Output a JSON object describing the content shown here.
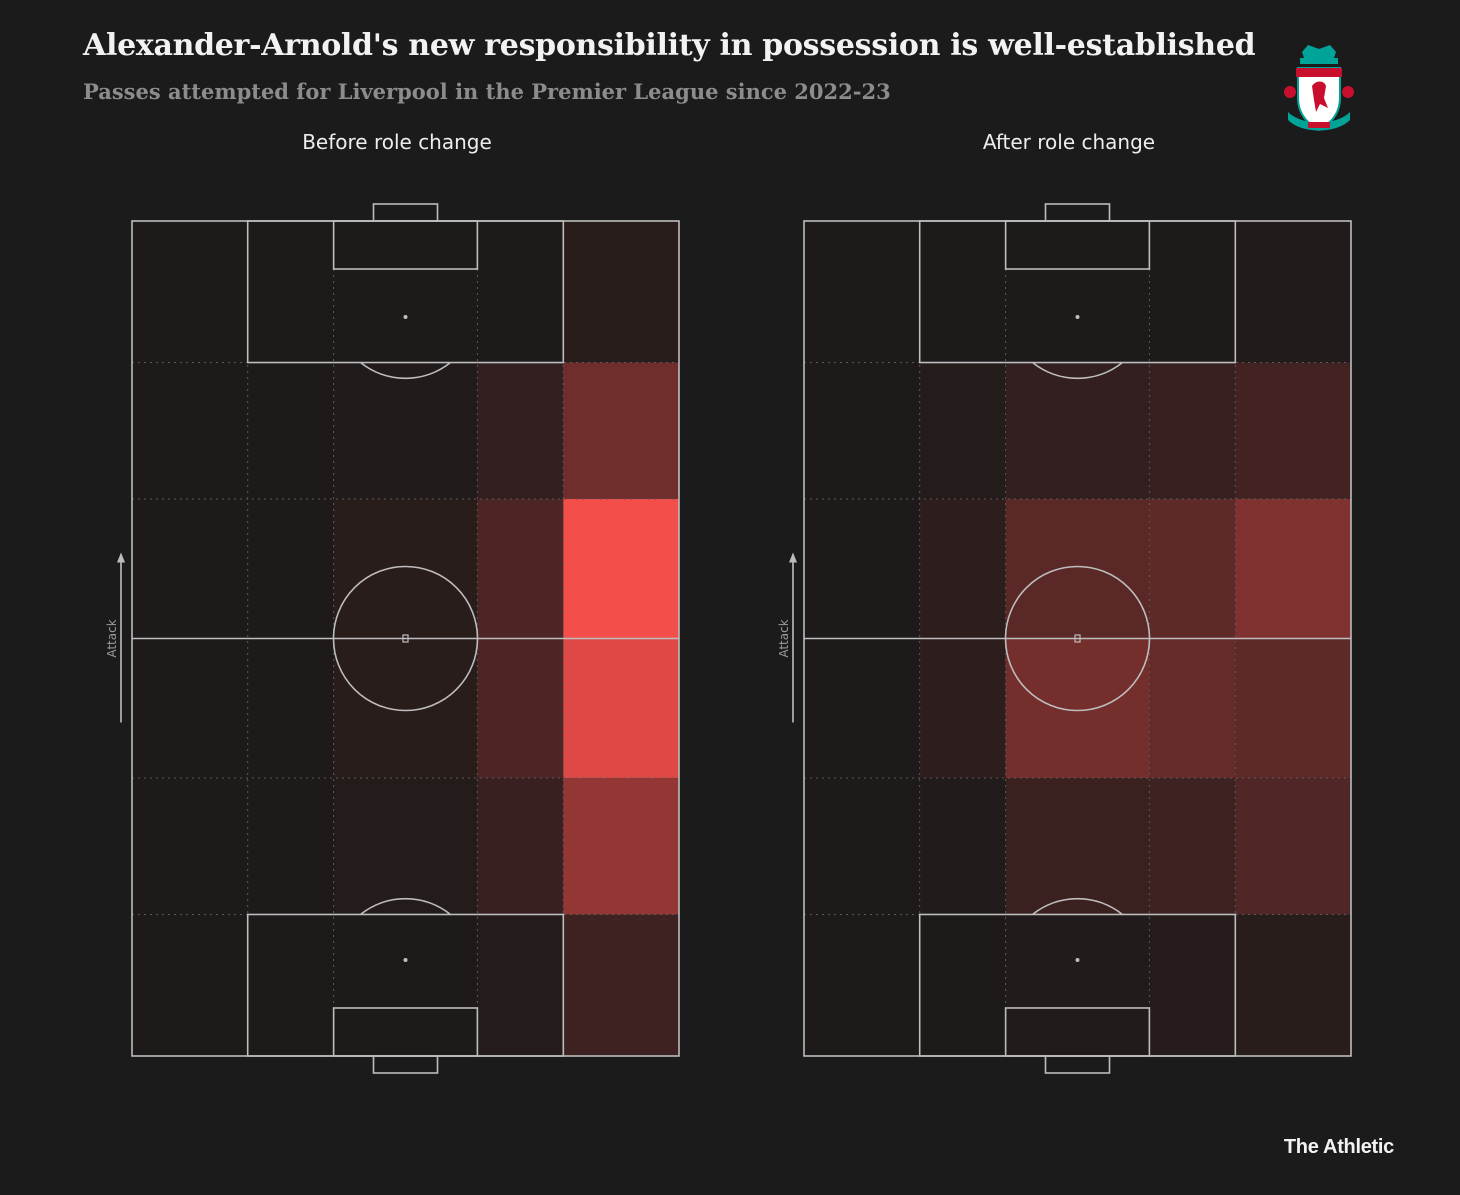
{
  "header": {
    "title": "Alexander-Arnold's new responsibility in possession is well-established",
    "subtitle": "Passes attempted for Liverpool in the Premier League since 2022-23"
  },
  "crest": {
    "name": "LIVERPOOL",
    "colors": {
      "red": "#c8102e",
      "green": "#00a398",
      "white": "#ffffff"
    }
  },
  "colors": {
    "background": "#1b1b1b",
    "pitch_lines": "#bdbdbd",
    "heat_low": "#1e1a1a",
    "heat_high": "#f44e4a"
  },
  "chart_data": [
    {
      "type": "heatmap",
      "title": "Before role change",
      "ylabel": "Attack",
      "zones_note": "5 columns (left wing to right wing) x 6 rows (attacking end to own goal); relative pass intensity 0-1",
      "values": [
        [
          0.0,
          0.0,
          0.0,
          0.0,
          0.05
        ],
        [
          0.0,
          0.0,
          0.02,
          0.1,
          0.38
        ],
        [
          0.0,
          0.0,
          0.05,
          0.22,
          1.0
        ],
        [
          0.0,
          0.0,
          0.05,
          0.22,
          0.9
        ],
        [
          0.0,
          0.0,
          0.03,
          0.12,
          0.55
        ],
        [
          0.0,
          0.0,
          0.0,
          0.03,
          0.15
        ]
      ]
    },
    {
      "type": "heatmap",
      "title": "After role change",
      "ylabel": "Attack",
      "zones_note": "5 columns (left wing to right wing) x 6 rows (attacking end to own goal); relative pass intensity 0-1",
      "values": [
        [
          0.0,
          0.0,
          0.0,
          0.0,
          0.02
        ],
        [
          0.0,
          0.03,
          0.1,
          0.12,
          0.17
        ],
        [
          0.0,
          0.07,
          0.28,
          0.3,
          0.46
        ],
        [
          0.0,
          0.07,
          0.4,
          0.33,
          0.3
        ],
        [
          0.0,
          0.02,
          0.13,
          0.15,
          0.24
        ],
        [
          0.0,
          0.0,
          0.02,
          0.04,
          0.05
        ]
      ]
    }
  ],
  "branding": "The Athletic"
}
